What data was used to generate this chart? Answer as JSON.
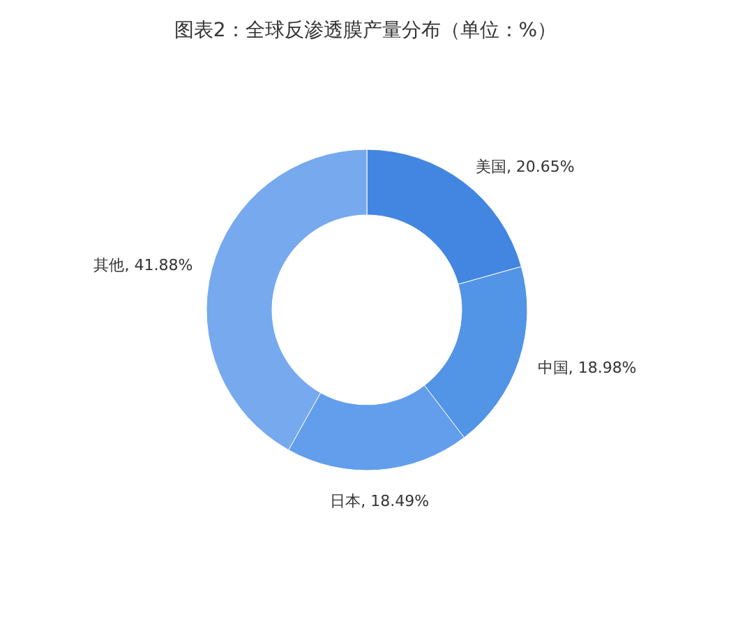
{
  "chart_data": {
    "type": "donut",
    "title": "图表2：全球反渗透膜产量分布（单位：%）",
    "categories": [
      "美国",
      "中国",
      "日本",
      "其他"
    ],
    "values": [
      20.65,
      18.98,
      18.49,
      41.88
    ],
    "value_labels": [
      "20.65%",
      "18.98%",
      "18.49%",
      "41.88%"
    ],
    "colors": [
      "#4286e1",
      "#5294e6",
      "#629eeb",
      "#76a9ee"
    ]
  }
}
